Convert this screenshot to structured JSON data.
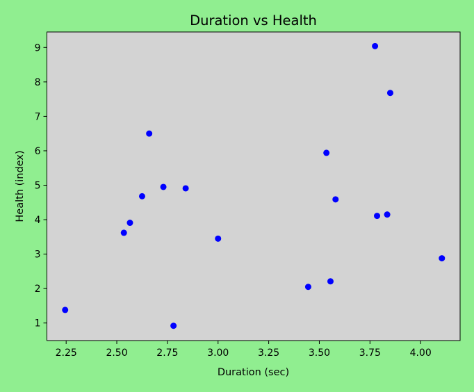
{
  "colors": {
    "figure_background": "#90ee90",
    "plot_background": "#d3d3d3",
    "marker": "#0000ff",
    "axes": "#000000"
  },
  "chart_data": {
    "type": "scatter",
    "title": "Duration vs Health",
    "xlabel": "Duration (sec)",
    "ylabel": "Health (index)",
    "xlim": [
      2.155,
      4.195
    ],
    "ylim": [
      0.49,
      9.45
    ],
    "x_ticks": [
      2.25,
      2.5,
      2.75,
      3.0,
      3.25,
      3.5,
      3.75,
      4.0
    ],
    "x_tick_labels": [
      "2.25",
      "2.50",
      "2.75",
      "3.00",
      "3.25",
      "3.50",
      "3.75",
      "4.00"
    ],
    "y_ticks": [
      1,
      2,
      3,
      4,
      5,
      6,
      7,
      8,
      9
    ],
    "y_tick_labels": [
      "1",
      "2",
      "3",
      "4",
      "5",
      "6",
      "7",
      "8",
      "9"
    ],
    "grid": false,
    "legend": false,
    "points": [
      {
        "x": 2.245,
        "y": 1.38
      },
      {
        "x": 2.535,
        "y": 3.62
      },
      {
        "x": 2.565,
        "y": 3.91
      },
      {
        "x": 2.625,
        "y": 4.68
      },
      {
        "x": 2.66,
        "y": 6.5
      },
      {
        "x": 2.73,
        "y": 4.95
      },
      {
        "x": 2.78,
        "y": 0.92
      },
      {
        "x": 2.84,
        "y": 4.91
      },
      {
        "x": 3.0,
        "y": 3.45
      },
      {
        "x": 3.445,
        "y": 2.05
      },
      {
        "x": 3.535,
        "y": 5.94
      },
      {
        "x": 3.555,
        "y": 2.21
      },
      {
        "x": 3.58,
        "y": 4.59
      },
      {
        "x": 3.775,
        "y": 9.04
      },
      {
        "x": 3.785,
        "y": 4.11
      },
      {
        "x": 3.835,
        "y": 4.15
      },
      {
        "x": 3.85,
        "y": 7.68
      },
      {
        "x": 4.105,
        "y": 2.88
      }
    ]
  }
}
